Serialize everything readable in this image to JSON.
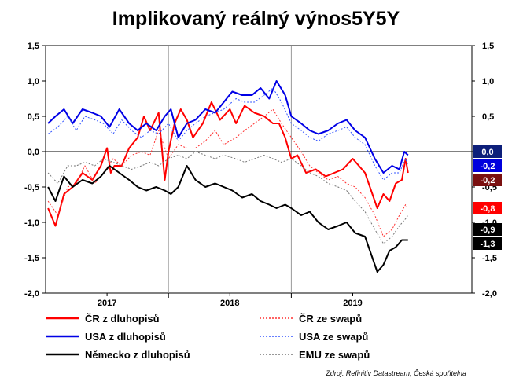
{
  "chart_data": {
    "type": "line",
    "title": "Implikovaný reálný výnos5Y5Y",
    "source": "Zdroj: Refinitiv Datastream, Česká spořitelna",
    "ylim": [
      -2.0,
      1.5
    ],
    "xlim": [
      2016.5,
      2019.97
    ],
    "y_ticks": [
      "1,5",
      "1,0",
      "0,5",
      "0,0",
      "-0,5",
      "-1,0",
      "-1,5",
      "-2,0"
    ],
    "x_ticks": [
      {
        "label": "2017",
        "at": 2017.0
      },
      {
        "label": "2018",
        "at": 2018.0
      },
      {
        "label": "2019",
        "at": 2019.0
      }
    ],
    "year_dividers": [
      2017.5,
      2018.5
    ],
    "grid": false,
    "legend_position": "bottom",
    "series": [
      {
        "name": "ČR z dluhopisů",
        "color": "#ff0000",
        "dash": "solid",
        "width": 2,
        "x": [
          2016.52,
          2016.58,
          2016.65,
          2016.72,
          2016.8,
          2016.88,
          2016.95,
          2017.0,
          2017.03,
          2017.06,
          2017.12,
          2017.18,
          2017.25,
          2017.3,
          2017.35,
          2017.42,
          2017.47,
          2017.5,
          2017.55,
          2017.6,
          2017.65,
          2017.7,
          2017.78,
          2017.85,
          2017.92,
          2018.0,
          2018.05,
          2018.12,
          2018.2,
          2018.28,
          2018.35,
          2018.4,
          2018.45,
          2018.5,
          2018.55,
          2018.62,
          2018.7,
          2018.78,
          2018.85,
          2018.92,
          2019.0,
          2019.05,
          2019.1,
          2019.15,
          2019.2,
          2019.25,
          2019.3,
          2019.35,
          2019.4,
          2019.43,
          2019.45
        ],
        "y": [
          -0.8,
          -1.05,
          -0.6,
          -0.5,
          -0.3,
          -0.4,
          -0.2,
          0.05,
          -0.3,
          -0.2,
          -0.2,
          0.05,
          0.2,
          0.5,
          0.3,
          0.55,
          -0.4,
          0.0,
          0.4,
          0.6,
          0.45,
          0.2,
          0.4,
          0.7,
          0.45,
          0.6,
          0.4,
          0.65,
          0.55,
          0.5,
          0.4,
          0.4,
          0.2,
          -0.1,
          -0.05,
          -0.3,
          -0.25,
          -0.35,
          -0.3,
          -0.25,
          -0.1,
          -0.2,
          -0.3,
          -0.55,
          -0.8,
          -0.6,
          -0.7,
          -0.45,
          -0.4,
          -0.1,
          -0.3
        ]
      },
      {
        "name": "ČR ze swapů",
        "color": "#ff3030",
        "dash": "2,2",
        "width": 1,
        "x": [
          2016.52,
          2016.6,
          2016.68,
          2016.75,
          2016.82,
          2016.9,
          2016.97,
          2017.05,
          2017.12,
          2017.2,
          2017.28,
          2017.35,
          2017.42,
          2017.5,
          2017.58,
          2017.65,
          2017.72,
          2017.8,
          2017.88,
          2017.95,
          2018.05,
          2018.12,
          2018.2,
          2018.28,
          2018.35,
          2018.42,
          2018.5,
          2018.58,
          2018.65,
          2018.72,
          2018.8,
          2018.88,
          2018.95,
          2019.02,
          2019.1,
          2019.18,
          2019.25,
          2019.32,
          2019.38,
          2019.43,
          2019.45
        ],
        "y": [
          -0.7,
          -0.9,
          -0.5,
          -0.45,
          -0.2,
          -0.45,
          -0.3,
          -0.1,
          -0.2,
          -0.05,
          0.0,
          -0.05,
          0.3,
          -0.1,
          0.1,
          0.05,
          0.05,
          0.15,
          0.3,
          0.1,
          0.2,
          0.3,
          0.4,
          0.5,
          0.6,
          0.4,
          0.2,
          0.0,
          -0.2,
          -0.3,
          -0.4,
          -0.35,
          -0.45,
          -0.5,
          -0.65,
          -0.9,
          -1.2,
          -1.1,
          -0.9,
          -0.75,
          -0.8
        ]
      },
      {
        "name": "USA z dluhopisů",
        "color": "#0000e6",
        "dash": "solid",
        "width": 2,
        "x": [
          2016.52,
          2016.58,
          2016.65,
          2016.72,
          2016.8,
          2016.88,
          2016.95,
          2017.02,
          2017.1,
          2017.18,
          2017.25,
          2017.32,
          2017.4,
          2017.47,
          2017.52,
          2017.58,
          2017.65,
          2017.72,
          2017.8,
          2017.88,
          2017.95,
          2018.02,
          2018.1,
          2018.18,
          2018.25,
          2018.32,
          2018.38,
          2018.45,
          2018.5,
          2018.58,
          2018.65,
          2018.72,
          2018.8,
          2018.88,
          2018.95,
          2019.02,
          2019.1,
          2019.18,
          2019.25,
          2019.32,
          2019.38,
          2019.42,
          2019.45
        ],
        "y": [
          0.4,
          0.5,
          0.6,
          0.4,
          0.6,
          0.55,
          0.5,
          0.35,
          0.6,
          0.4,
          0.3,
          0.4,
          0.3,
          0.5,
          0.6,
          0.2,
          0.4,
          0.45,
          0.6,
          0.55,
          0.7,
          0.85,
          0.8,
          0.8,
          0.9,
          0.75,
          1.0,
          0.8,
          0.5,
          0.4,
          0.3,
          0.25,
          0.3,
          0.4,
          0.45,
          0.3,
          0.2,
          -0.1,
          -0.3,
          -0.2,
          -0.25,
          0.0,
          -0.05
        ]
      },
      {
        "name": "USA ze swapů",
        "color": "#3355ff",
        "dash": "2,2",
        "width": 1,
        "x": [
          2016.52,
          2016.6,
          2016.68,
          2016.75,
          2016.82,
          2016.9,
          2016.97,
          2017.05,
          2017.12,
          2017.2,
          2017.28,
          2017.35,
          2017.42,
          2017.5,
          2017.58,
          2017.65,
          2017.72,
          2017.8,
          2017.88,
          2017.95,
          2018.05,
          2018.12,
          2018.2,
          2018.28,
          2018.35,
          2018.42,
          2018.5,
          2018.58,
          2018.65,
          2018.72,
          2018.8,
          2018.88,
          2018.95,
          2019.02,
          2019.1,
          2019.18,
          2019.25,
          2019.32,
          2019.38,
          2019.43,
          2019.45
        ],
        "y": [
          0.25,
          0.35,
          0.5,
          0.3,
          0.5,
          0.45,
          0.4,
          0.25,
          0.45,
          0.3,
          0.2,
          0.3,
          0.25,
          0.4,
          0.15,
          0.3,
          0.4,
          0.5,
          0.55,
          0.6,
          0.75,
          0.7,
          0.7,
          0.8,
          0.9,
          0.7,
          0.4,
          0.3,
          0.2,
          0.15,
          0.25,
          0.3,
          0.35,
          0.2,
          0.1,
          -0.2,
          -0.4,
          -0.3,
          -0.3,
          -0.1,
          -0.2
        ]
      },
      {
        "name": "Německo z dluhopisů",
        "color": "#000000",
        "dash": "solid",
        "width": 2,
        "x": [
          2016.52,
          2016.58,
          2016.65,
          2016.72,
          2016.8,
          2016.88,
          2016.95,
          2017.02,
          2017.1,
          2017.18,
          2017.25,
          2017.32,
          2017.4,
          2017.47,
          2017.52,
          2017.58,
          2017.65,
          2017.72,
          2017.8,
          2017.88,
          2017.95,
          2018.02,
          2018.1,
          2018.18,
          2018.25,
          2018.32,
          2018.38,
          2018.45,
          2018.5,
          2018.58,
          2018.65,
          2018.72,
          2018.8,
          2018.88,
          2018.95,
          2019.02,
          2019.1,
          2019.15,
          2019.2,
          2019.25,
          2019.3,
          2019.35,
          2019.4,
          2019.45
        ],
        "y": [
          -0.5,
          -0.7,
          -0.35,
          -0.5,
          -0.4,
          -0.45,
          -0.35,
          -0.2,
          -0.3,
          -0.4,
          -0.5,
          -0.55,
          -0.5,
          -0.55,
          -0.6,
          -0.5,
          -0.2,
          -0.4,
          -0.5,
          -0.45,
          -0.5,
          -0.55,
          -0.65,
          -0.6,
          -0.7,
          -0.75,
          -0.8,
          -0.75,
          -0.8,
          -0.9,
          -0.85,
          -1.0,
          -1.1,
          -1.05,
          -1.0,
          -1.15,
          -1.2,
          -1.45,
          -1.7,
          -1.6,
          -1.4,
          -1.35,
          -1.25,
          -1.25
        ]
      },
      {
        "name": "EMU ze swapů",
        "color": "#777777",
        "dash": "2,2",
        "width": 1,
        "x": [
          2016.52,
          2016.6,
          2016.68,
          2016.75,
          2016.82,
          2016.9,
          2016.97,
          2017.05,
          2017.12,
          2017.2,
          2017.28,
          2017.35,
          2017.42,
          2017.5,
          2017.58,
          2017.65,
          2017.72,
          2017.8,
          2017.88,
          2017.95,
          2018.05,
          2018.12,
          2018.2,
          2018.28,
          2018.35,
          2018.42,
          2018.5,
          2018.58,
          2018.65,
          2018.72,
          2018.8,
          2018.88,
          2018.95,
          2019.02,
          2019.1,
          2019.18,
          2019.25,
          2019.32,
          2019.38,
          2019.43,
          2019.45
        ],
        "y": [
          -0.3,
          -0.45,
          -0.2,
          -0.2,
          -0.15,
          -0.2,
          -0.1,
          -0.15,
          -0.2,
          -0.25,
          -0.2,
          -0.15,
          -0.2,
          -0.1,
          -0.05,
          -0.1,
          0.0,
          -0.05,
          -0.1,
          -0.05,
          -0.1,
          -0.15,
          -0.1,
          -0.05,
          -0.1,
          -0.15,
          -0.1,
          -0.2,
          -0.3,
          -0.35,
          -0.45,
          -0.5,
          -0.55,
          -0.7,
          -0.85,
          -1.1,
          -1.3,
          -1.2,
          -1.05,
          -0.95,
          -0.9
        ]
      }
    ],
    "badges": [
      {
        "label": "0,0",
        "value": 0.0,
        "color": "#0d1f7a"
      },
      {
        "label": "-0,2",
        "value": -0.2,
        "color": "#0000dd"
      },
      {
        "label": "-0,2",
        "value": -0.4,
        "color": "#7a1010"
      },
      {
        "label": "-0,8",
        "value": -0.8,
        "color": "#ff0000"
      },
      {
        "label": "-0,9",
        "value": -1.1,
        "color": "#000000"
      },
      {
        "label": "-1,3",
        "value": -1.3,
        "color": "#000000"
      }
    ]
  }
}
